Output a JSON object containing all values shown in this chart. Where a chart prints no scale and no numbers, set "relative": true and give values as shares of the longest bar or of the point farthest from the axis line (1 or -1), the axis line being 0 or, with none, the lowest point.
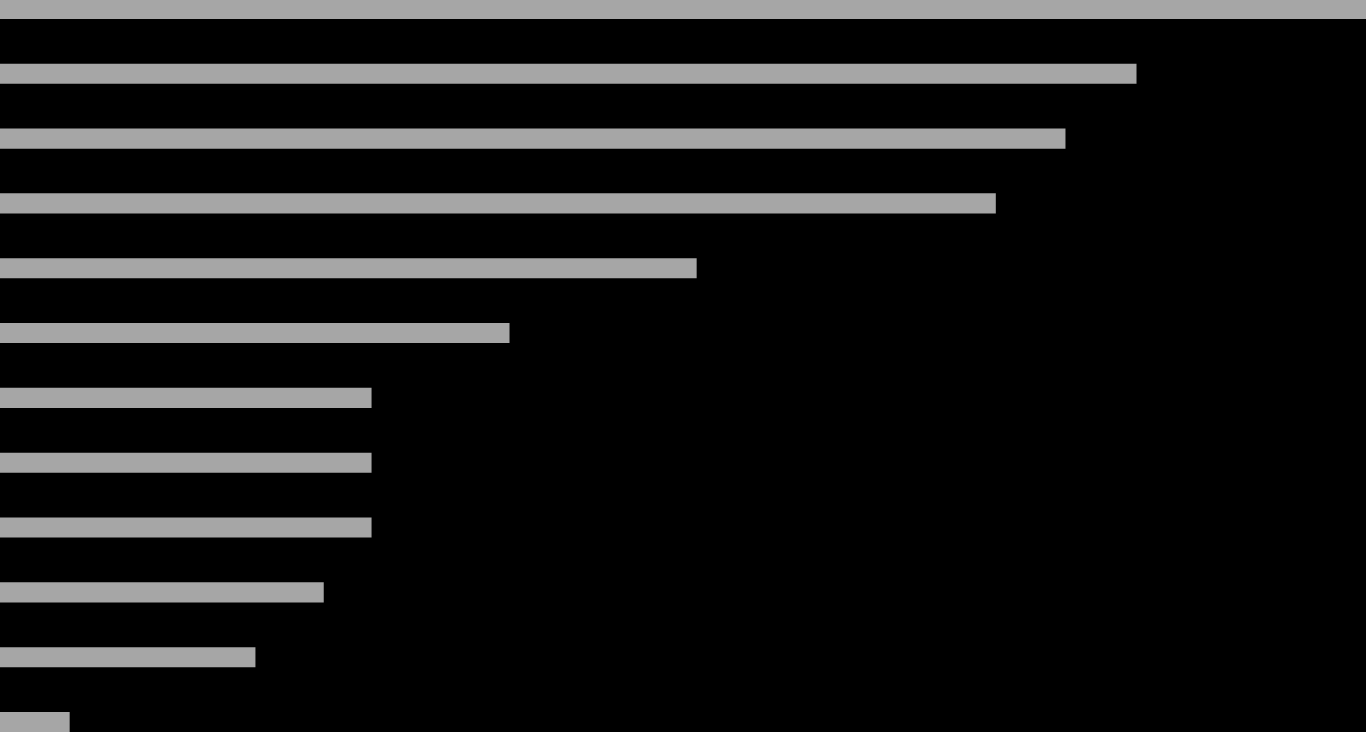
{
  "chart_data": {
    "type": "bar",
    "orientation": "horizontal",
    "relative": true,
    "categories": [
      null,
      null,
      null,
      null,
      null,
      null,
      null,
      null,
      null,
      null,
      null,
      null
    ],
    "values": [
      1,
      0.832,
      0.78,
      0.729,
      0.51,
      0.373,
      0.272,
      0.272,
      0.272,
      0.237,
      0.187,
      0.051
    ],
    "color": "#a6a6a6",
    "grid": false,
    "legend": false
  }
}
